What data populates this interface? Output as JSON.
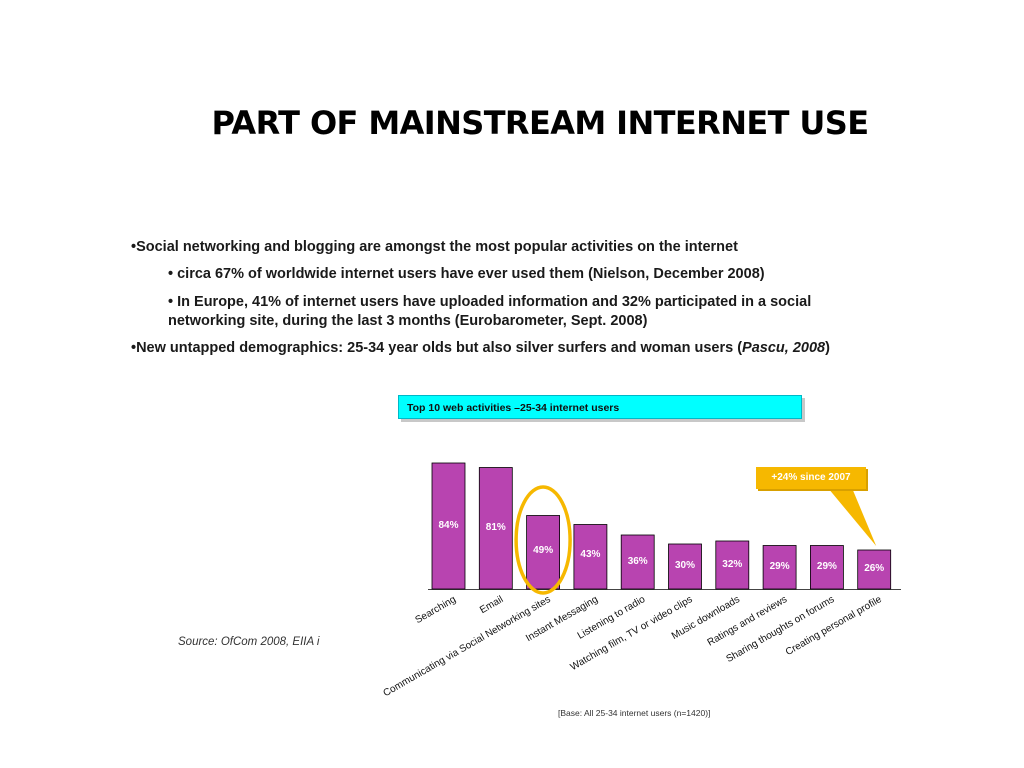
{
  "slide": {
    "title": "PART OF MAINSTREAM INTERNET USE",
    "bullets": {
      "b1": "•Social networking and blogging are amongst the most popular activities on the internet",
      "b1a": "• circa 67% of worldwide internet users have ever used them (Nielson, December 2008)",
      "b1b_line1": "• In Europe, 41% of internet users have uploaded information and 32% participated in a social",
      "b1b_line2": "networking site, during the last 3 months (Eurobarometer, Sept. 2008)",
      "b2_main": "•New untapped demographics:  25-34 year olds but also silver surfers and woman users (",
      "b2_cite": "Pascu, 2008",
      "b2_end": ")"
    },
    "source": "Source: OfCom 2008, EIIA i",
    "base_note": "[Base: All 25-34 internet users (n=1420)]"
  },
  "chart_data": {
    "type": "bar",
    "title": "Top 10 web activities –25-34 internet users",
    "categories": [
      "Searching",
      "Email",
      "Communicating via Social Networking sites",
      "Instant Messaging",
      "Listening to radio",
      "Watching film, TV or video clips",
      "Music downloads",
      "Ratings and reviews",
      "Sharing thoughts on forums",
      "Creating personal profile"
    ],
    "values": [
      84,
      81,
      49,
      43,
      36,
      30,
      32,
      29,
      29,
      26
    ],
    "data_labels": [
      "84%",
      "81%",
      "49%",
      "43%",
      "36%",
      "30%",
      "32%",
      "29%",
      "29%",
      "26%"
    ],
    "ylim": [
      0,
      100
    ],
    "grid": false,
    "bar_color": "#b844b0",
    "highlight_index": 2,
    "highlight_color": "#f6b800",
    "callout": {
      "text": "+24% since 2007",
      "target_index": 9,
      "color": "#f6b800"
    }
  }
}
